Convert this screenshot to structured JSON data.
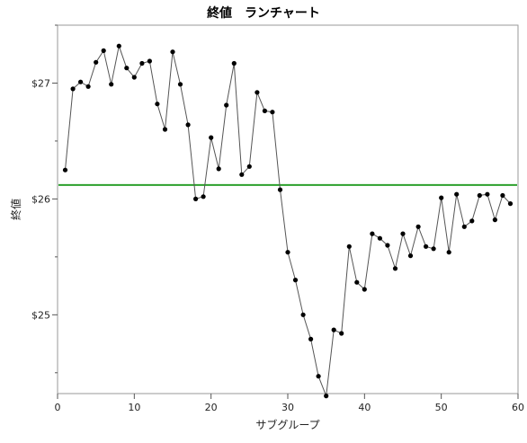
{
  "chart_data": {
    "type": "line",
    "title": "終値　ランチャート",
    "xlabel": "サブグループ",
    "ylabel": "終値",
    "xlim": [
      0,
      60
    ],
    "ylim": [
      24.32,
      27.5
    ],
    "x_ticks": [
      0,
      10,
      20,
      30,
      40,
      50,
      60
    ],
    "y_ticks": [
      25,
      26,
      27
    ],
    "y_tick_labels": [
      "$25",
      "$26",
      "$27"
    ],
    "y_minor_ticks": [
      24.5,
      25.5,
      26.5,
      27.5
    ],
    "grid": false,
    "center_line": {
      "value": 26.12,
      "color": "#2ca02c"
    },
    "series": [
      {
        "color": "#555555",
        "marker_color": "#000000",
        "x": [
          1,
          2,
          3,
          4,
          5,
          6,
          7,
          8,
          9,
          10,
          11,
          12,
          13,
          14,
          15,
          16,
          17,
          18,
          19,
          20,
          21,
          22,
          23,
          24,
          25,
          26,
          27,
          28,
          29,
          30,
          31,
          32,
          33,
          34,
          35,
          36,
          37,
          38,
          39,
          40,
          41,
          42,
          43,
          44,
          45,
          46,
          47,
          48,
          49,
          50,
          51,
          52,
          53,
          54,
          55,
          56,
          57,
          58,
          59
        ],
        "values": [
          26.25,
          26.95,
          27.01,
          26.97,
          27.18,
          27.28,
          26.99,
          27.32,
          27.13,
          27.05,
          27.17,
          27.19,
          26.82,
          26.6,
          27.27,
          26.99,
          26.64,
          26.0,
          26.02,
          26.53,
          26.26,
          26.81,
          27.17,
          26.21,
          26.28,
          26.92,
          26.76,
          26.75,
          26.08,
          25.54,
          25.3,
          25.0,
          24.79,
          24.47,
          24.3,
          24.87,
          24.84,
          25.59,
          25.28,
          25.22,
          25.7,
          25.66,
          25.6,
          25.4,
          25.7,
          25.51,
          25.76,
          25.59,
          25.57,
          26.01,
          25.54,
          26.04,
          25.76,
          25.81,
          26.03,
          26.04,
          25.82,
          26.03,
          25.96
        ]
      }
    ]
  }
}
